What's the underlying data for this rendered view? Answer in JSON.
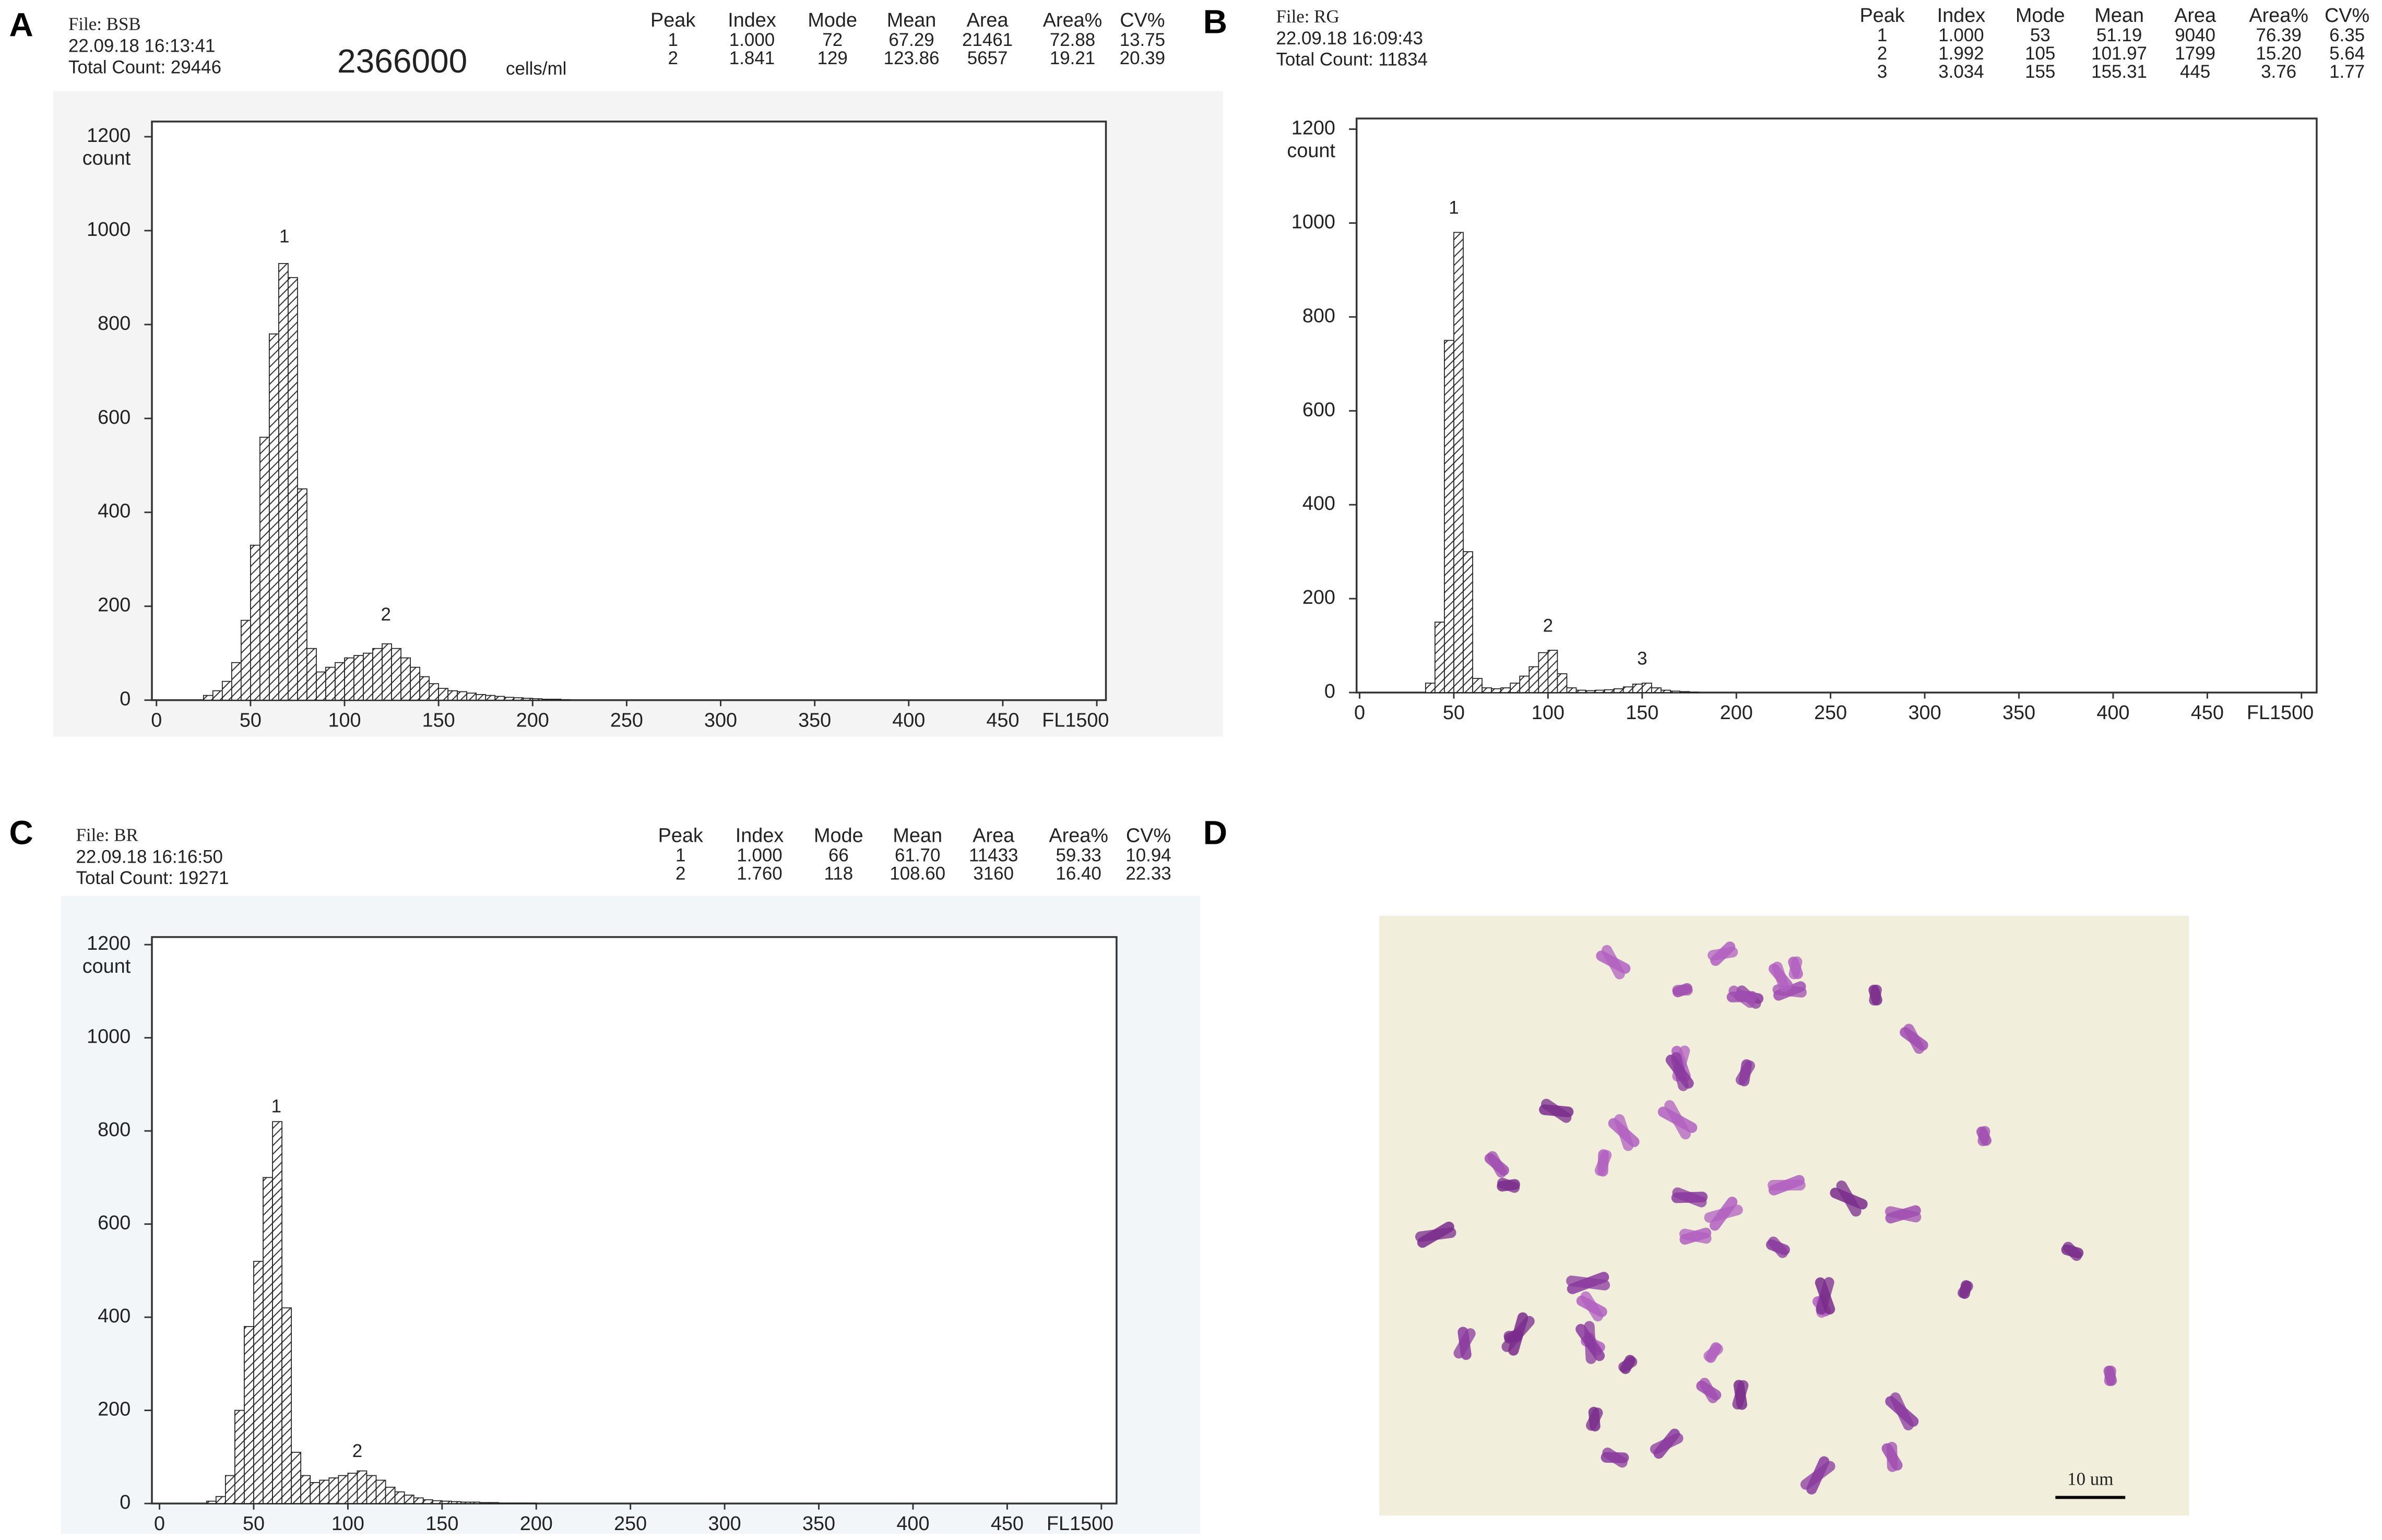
{
  "panel_labels": [
    "A",
    "B",
    "C",
    "D"
  ],
  "chart_data": [
    {
      "type": "histogram",
      "file": "File: BSB",
      "timestamp": "22.09.18 16:13:41",
      "total_count": "Total Count:  29446",
      "concentration": {
        "value": "2366000",
        "unit": "cells/ml"
      },
      "stats": {
        "columns": [
          "Peak",
          "Index",
          "Mode",
          "Mean",
          "Area",
          "Area%",
          "CV%"
        ],
        "rows": [
          [
            "1",
            "1.000",
            "72",
            "67.29",
            "21461",
            "72.88",
            "13.75"
          ],
          [
            "2",
            "1.841",
            "129",
            "123.86",
            "5657",
            "19.21",
            "20.39"
          ]
        ]
      },
      "ylabel": "count",
      "xlim": [
        0,
        500
      ],
      "ylim": [
        0,
        1200
      ],
      "xticks": [
        0,
        50,
        100,
        150,
        200,
        250,
        300,
        350,
        400,
        450,
        {
          "value": 500,
          "label": "FL1500"
        }
      ],
      "yticks": [
        0,
        200,
        400,
        600,
        800,
        1000,
        1200
      ],
      "bins": [
        25,
        30,
        35,
        40,
        45,
        50,
        55,
        60,
        65,
        70,
        75,
        80,
        85,
        90,
        95,
        100,
        105,
        110,
        115,
        120,
        125,
        130,
        135,
        140,
        145,
        150,
        155,
        160,
        165,
        170,
        175,
        180,
        185,
        190,
        195,
        200,
        205,
        210,
        215,
        220
      ],
      "values": [
        10,
        20,
        40,
        80,
        170,
        330,
        560,
        780,
        930,
        900,
        450,
        110,
        60,
        70,
        80,
        90,
        95,
        100,
        110,
        120,
        110,
        90,
        70,
        50,
        35,
        25,
        20,
        18,
        15,
        12,
        10,
        8,
        6,
        5,
        4,
        3,
        2,
        2,
        1
      ],
      "annotations": [
        {
          "text": "1",
          "x": 68,
          "y": 985
        },
        {
          "text": "2",
          "x": 122,
          "y": 180
        }
      ]
    },
    {
      "type": "histogram",
      "file": "File: RG",
      "timestamp": "22.09.18 16:09:43",
      "total_count": "Total Count:  11834",
      "stats": {
        "columns": [
          "Peak",
          "Index",
          "Mode",
          "Mean",
          "Area",
          "Area%",
          "CV%"
        ],
        "rows": [
          [
            "1",
            "1.000",
            "53",
            "51.19",
            "9040",
            "76.39",
            "6.35"
          ],
          [
            "2",
            "1.992",
            "105",
            "101.97",
            "1799",
            "15.20",
            "5.64"
          ],
          [
            "3",
            "3.034",
            "155",
            "155.31",
            "445",
            "3.76",
            "1.77"
          ]
        ]
      },
      "ylabel": "count",
      "xlim": [
        0,
        500
      ],
      "ylim": [
        0,
        1200
      ],
      "xticks": [
        0,
        50,
        100,
        150,
        200,
        250,
        300,
        350,
        400,
        450,
        {
          "value": 500,
          "label": "FL1500"
        }
      ],
      "yticks": [
        0,
        200,
        400,
        600,
        800,
        1000,
        1200
      ],
      "bins": [
        35,
        40,
        45,
        50,
        55,
        60,
        65,
        70,
        75,
        80,
        85,
        90,
        95,
        100,
        105,
        110,
        115,
        120,
        125,
        130,
        135,
        140,
        145,
        150,
        155,
        160,
        165,
        170,
        175,
        180
      ],
      "values": [
        20,
        150,
        750,
        980,
        300,
        30,
        10,
        8,
        10,
        20,
        35,
        55,
        85,
        90,
        40,
        10,
        5,
        4,
        5,
        6,
        8,
        12,
        18,
        20,
        10,
        5,
        3,
        2,
        1
      ],
      "annotations": [
        {
          "text": "1",
          "x": 50,
          "y": 1030
        },
        {
          "text": "2",
          "x": 100,
          "y": 140
        },
        {
          "text": "3",
          "x": 150,
          "y": 70
        }
      ]
    },
    {
      "type": "histogram",
      "file": "File: BR",
      "timestamp": "22.09.18 16:16:50",
      "total_count": "Total Count:  19271",
      "stats": {
        "columns": [
          "Peak",
          "Index",
          "Mode",
          "Mean",
          "Area",
          "Area%",
          "CV%"
        ],
        "rows": [
          [
            "1",
            "1.000",
            "66",
            "61.70",
            "11433",
            "59.33",
            "10.94"
          ],
          [
            "2",
            "1.760",
            "118",
            "108.60",
            "3160",
            "16.40",
            "22.33"
          ]
        ]
      },
      "ylabel": "count",
      "xlim": [
        0,
        500
      ],
      "ylim": [
        0,
        1200
      ],
      "xticks": [
        0,
        50,
        100,
        150,
        200,
        250,
        300,
        350,
        400,
        450,
        {
          "value": 500,
          "label": "FL1500"
        }
      ],
      "yticks": [
        0,
        200,
        400,
        600,
        800,
        1000,
        1200
      ],
      "bins": [
        25,
        30,
        35,
        40,
        45,
        50,
        55,
        60,
        65,
        70,
        75,
        80,
        85,
        90,
        95,
        100,
        105,
        110,
        115,
        120,
        125,
        130,
        135,
        140,
        145,
        150,
        155,
        160,
        165,
        170,
        175,
        180,
        185,
        190,
        195,
        200
      ],
      "values": [
        5,
        15,
        60,
        200,
        380,
        520,
        700,
        820,
        420,
        110,
        60,
        45,
        50,
        55,
        60,
        65,
        70,
        60,
        50,
        35,
        25,
        18,
        12,
        8,
        6,
        5,
        4,
        3,
        3,
        2,
        2,
        1,
        1,
        1,
        1
      ],
      "annotations": [
        {
          "text": "1",
          "x": 62,
          "y": 850
        },
        {
          "text": "2",
          "x": 105,
          "y": 110
        }
      ]
    }
  ],
  "micrograph": {
    "scale_bar": "10 um"
  }
}
